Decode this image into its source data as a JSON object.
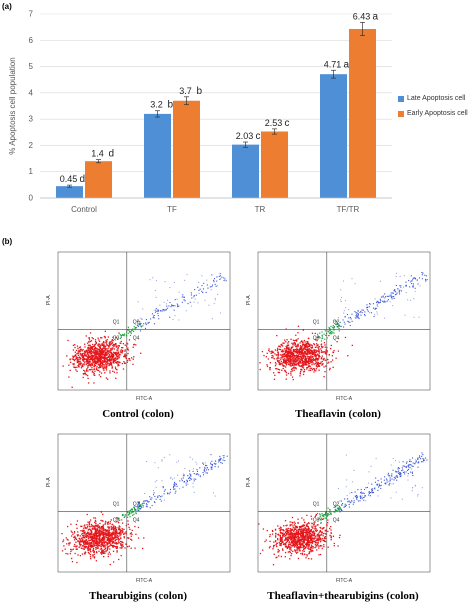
{
  "panel_a_label": "(a)",
  "panel_b_label": "(b)",
  "chart_data": {
    "type": "bar",
    "title": "",
    "xlabel": "",
    "ylabel": "% Apoptosis cell population",
    "ylim": [
      0,
      7
    ],
    "yticks": [
      "0",
      "1",
      "2",
      "3",
      "4",
      "5",
      "6",
      "7"
    ],
    "categories": [
      "Control",
      "TF",
      "TR",
      "TF/TR"
    ],
    "series": [
      {
        "name": "Late Apoptosis cell",
        "color": "#4f8fd6",
        "values": [
          0.45,
          3.2,
          2.03,
          4.71
        ],
        "labels": [
          "0.45",
          "3.2",
          "2.03",
          "4.71"
        ],
        "letters": [
          "d",
          "b",
          "c",
          "a"
        ],
        "errors": [
          0.04,
          0.12,
          0.1,
          0.15
        ]
      },
      {
        "name": "Early Apoptosis cell",
        "color": "#ed7d31",
        "values": [
          1.4,
          3.7,
          2.53,
          6.43
        ],
        "labels": [
          "1.4",
          "3.7",
          "2.53",
          "6.43"
        ],
        "letters": [
          "d",
          "b",
          "c",
          "a"
        ],
        "errors": [
          0.06,
          0.15,
          0.1,
          0.25
        ]
      }
    ],
    "grid": true,
    "legend_position": "right"
  },
  "flow_panels": [
    {
      "caption": "Control (colon)",
      "quadrants": [
        "Q1",
        "Q2",
        "Q3",
        "Q4"
      ],
      "xaxis": "FITC-A",
      "yaxis": "PI-A"
    },
    {
      "caption": "Theaflavin (colon)",
      "quadrants": [
        "Q1",
        "Q2",
        "Q3",
        "Q4"
      ],
      "xaxis": "FITC-A",
      "yaxis": "PI-A"
    },
    {
      "caption": "Thearubigins (colon)",
      "quadrants": [
        "Q1",
        "Q2",
        "Q3",
        "Q4"
      ],
      "xaxis": "FITC-A",
      "yaxis": "PI-A"
    },
    {
      "caption": "Theaflavin+thearubigins (colon)",
      "quadrants": [
        "Q1",
        "Q2",
        "Q3",
        "Q4"
      ],
      "xaxis": "FITC-A",
      "yaxis": "PI-A"
    }
  ]
}
